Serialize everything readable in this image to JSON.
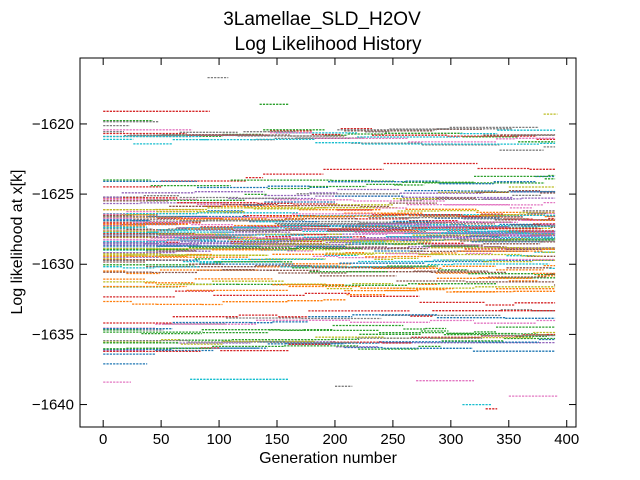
{
  "chart_data": {
    "type": "line",
    "title": [
      "3Lamellae_SLD_H2OV",
      "Log Likelihood History"
    ],
    "xlabel": "Generation number",
    "ylabel": "Log likelihood at x[k]",
    "xlim": [
      -20,
      408
    ],
    "ylim": [
      -1641.6,
      -1615.3
    ],
    "xticks": [
      0,
      50,
      100,
      150,
      200,
      250,
      300,
      350,
      400
    ],
    "yticks": [
      -1620,
      -1625,
      -1630,
      -1635,
      -1640
    ],
    "grid": false,
    "legend": "none",
    "n_chains": 100,
    "generations": 390,
    "value_range": [
      -1640.3,
      -1616.7
    ],
    "dense_band": [
      -1633.5,
      -1622.0
    ],
    "series_colors": [
      "#1f77b4",
      "#ff7f0e",
      "#2ca02c",
      "#d62728",
      "#9467bd",
      "#8c564b",
      "#e377c2",
      "#7f7f7f",
      "#bcbd22",
      "#17becf"
    ],
    "series": [
      {
        "values_sample": [
          -1616.7,
          -1616.7
        ]
      },
      {
        "values_sample": [
          -1618.6,
          -1618.6
        ]
      },
      {
        "values_sample": [
          -1619.1,
          -1619.1
        ]
      },
      {
        "values_sample": [
          -1637.1,
          -1637.1
        ]
      },
      {
        "values_sample": [
          -1638.2,
          -1638.2
        ]
      },
      {
        "values_sample": [
          -1640.0,
          -1640.0
        ]
      },
      {
        "values_sample": [
          -1640.3,
          -1640.3
        ]
      }
    ]
  }
}
